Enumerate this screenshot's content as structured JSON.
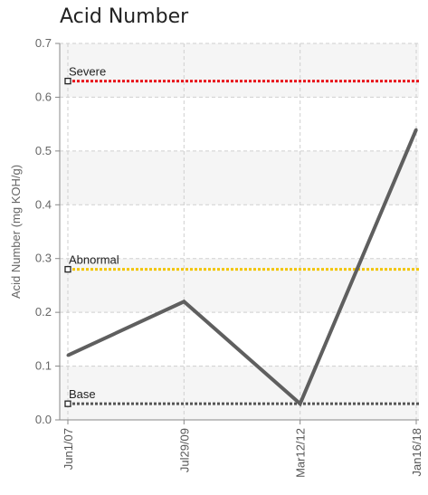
{
  "chart_data": {
    "type": "line",
    "title": "Acid Number",
    "xlabel": "",
    "ylabel": "Acid Number (mg KOH/g)",
    "ylim": [
      0,
      0.7
    ],
    "yticks": [
      "0.0",
      "0.1",
      "0.2",
      "0.3",
      "0.4",
      "0.5",
      "0.6",
      "0.7"
    ],
    "categories": [
      "Jun1/07",
      "Jul29/09",
      "Mar12/12",
      "Jan16/18"
    ],
    "series": [
      {
        "values": [
          0.12,
          0.22,
          0.03,
          0.54
        ],
        "color": "#5f5f5f"
      }
    ],
    "thresholds": [
      {
        "label": "Severe",
        "value": 0.63,
        "color": "#e8141b"
      },
      {
        "label": "Abnormal",
        "value": 0.28,
        "color": "#f2c500"
      },
      {
        "label": "Base",
        "value": 0.03,
        "color": "#555555"
      }
    ],
    "grid": true,
    "legend": "none"
  }
}
